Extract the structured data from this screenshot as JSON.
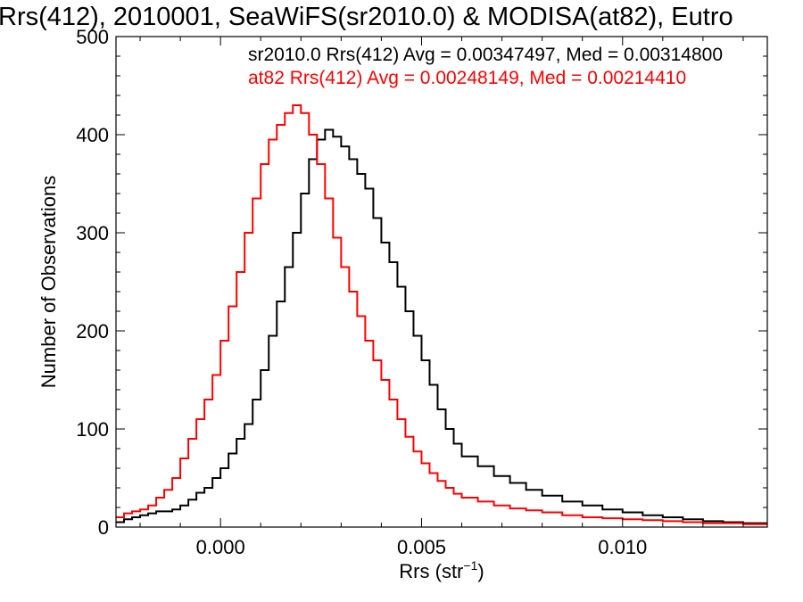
{
  "chart_data": {
    "type": "line",
    "title": "Rrs(412), 2010001, SeaWiFS(sr2010.0) & MODISA(at82), Eutro",
    "xlabel": "Rrs (str",
    "xlabel_sup": "−1",
    "xlabel_end": ")",
    "ylabel": "Number of Observations",
    "xlim": [
      -0.0026,
      0.0136
    ],
    "ylim": [
      0,
      500
    ],
    "grid": false,
    "x_ticks": [
      {
        "value": 0.0,
        "label": "0.000"
      },
      {
        "value": 0.005,
        "label": "0.005"
      },
      {
        "value": 0.01,
        "label": "0.010"
      }
    ],
    "y_ticks": [
      {
        "value": 0,
        "label": "0"
      },
      {
        "value": 100,
        "label": "100"
      },
      {
        "value": 200,
        "label": "200"
      },
      {
        "value": 300,
        "label": "300"
      },
      {
        "value": 400,
        "label": "400"
      },
      {
        "value": 500,
        "label": "500"
      }
    ],
    "annotations": [
      {
        "text": "sr2010.0 Rrs(412) Avg = 0.00347497, Med = 0.00314800",
        "color": "#000000"
      },
      {
        "text": "at82 Rrs(412) Avg = 0.00248149, Med = 0.00214410",
        "color": "#ff0000"
      }
    ],
    "series": [
      {
        "color": "#000000",
        "x": [
          -0.0026,
          -0.0024,
          -0.0022,
          -0.002,
          -0.0018,
          -0.0016,
          -0.0014,
          -0.0012,
          -0.001,
          -0.0008,
          -0.0006,
          -0.0004,
          -0.0002,
          0.0,
          0.0002,
          0.0004,
          0.0006,
          0.0008,
          0.001,
          0.0012,
          0.0014,
          0.0016,
          0.0018,
          0.002,
          0.0022,
          0.0024,
          0.0026,
          0.0028,
          0.003,
          0.0032,
          0.0034,
          0.0036,
          0.0038,
          0.004,
          0.0042,
          0.0044,
          0.0046,
          0.0048,
          0.005,
          0.0052,
          0.0054,
          0.0056,
          0.0058,
          0.006,
          0.0064,
          0.0068,
          0.0072,
          0.0076,
          0.008,
          0.0085,
          0.009,
          0.0095,
          0.01,
          0.0105,
          0.011,
          0.0115,
          0.012,
          0.0125,
          0.013,
          0.0136
        ],
        "y": [
          5,
          8,
          10,
          12,
          14,
          16,
          16,
          18,
          22,
          28,
          35,
          40,
          50,
          60,
          75,
          90,
          105,
          130,
          160,
          195,
          230,
          265,
          300,
          340,
          375,
          395,
          405,
          398,
          388,
          375,
          360,
          345,
          315,
          290,
          270,
          245,
          220,
          195,
          170,
          145,
          120,
          100,
          85,
          72,
          62,
          52,
          45,
          38,
          32,
          26,
          22,
          18,
          15,
          12,
          10,
          8,
          6,
          5,
          4,
          3
        ]
      },
      {
        "color": "#ff0000",
        "x": [
          -0.0026,
          -0.0024,
          -0.0022,
          -0.002,
          -0.0018,
          -0.0016,
          -0.0014,
          -0.0012,
          -0.001,
          -0.0008,
          -0.0006,
          -0.0004,
          -0.0002,
          0.0,
          0.0002,
          0.0004,
          0.0006,
          0.0008,
          0.001,
          0.0012,
          0.0014,
          0.0016,
          0.0018,
          0.002,
          0.0022,
          0.0024,
          0.0026,
          0.0028,
          0.003,
          0.0032,
          0.0034,
          0.0036,
          0.0038,
          0.004,
          0.0042,
          0.0044,
          0.0046,
          0.0048,
          0.005,
          0.0052,
          0.0054,
          0.0056,
          0.0058,
          0.006,
          0.0064,
          0.0068,
          0.0072,
          0.0076,
          0.008,
          0.0085,
          0.009,
          0.0095,
          0.01,
          0.0105,
          0.011,
          0.0115,
          0.012,
          0.0125,
          0.013,
          0.0136
        ],
        "y": [
          10,
          14,
          16,
          18,
          22,
          30,
          38,
          50,
          70,
          90,
          110,
          130,
          155,
          190,
          225,
          260,
          300,
          335,
          370,
          395,
          410,
          422,
          430,
          422,
          400,
          370,
          335,
          295,
          265,
          240,
          215,
          190,
          170,
          150,
          130,
          110,
          92,
          77,
          65,
          55,
          47,
          40,
          34,
          30,
          26,
          22,
          19,
          17,
          15,
          12,
          10,
          9,
          8,
          7,
          6,
          5,
          4,
          4,
          3,
          2
        ]
      }
    ]
  }
}
